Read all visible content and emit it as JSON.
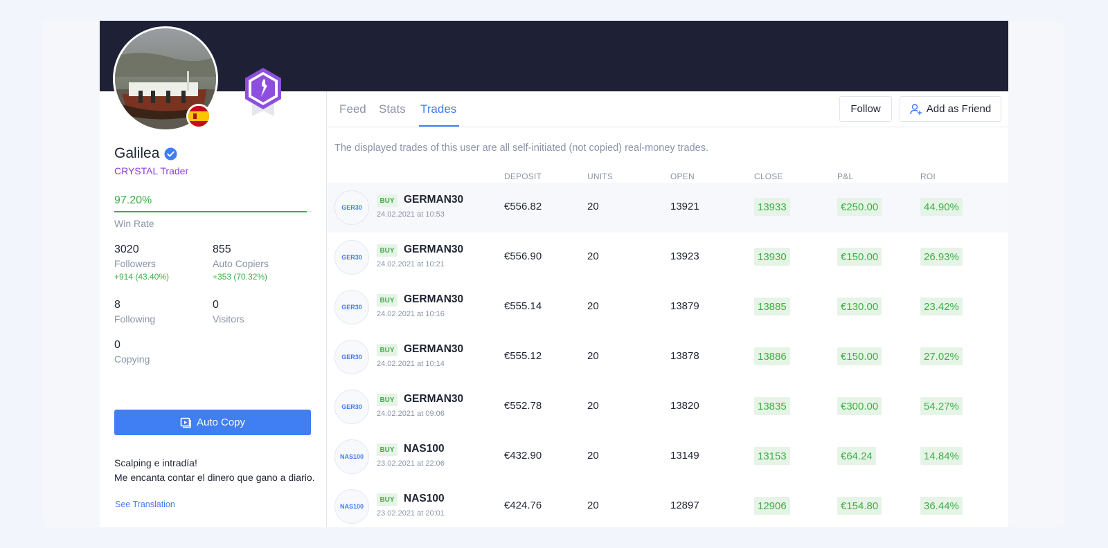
{
  "profile": {
    "name": "Galilea",
    "tier": "CRYSTAL Trader",
    "win_rate": "97.20%",
    "win_rate_fraction": 0.972,
    "win_rate_label": "Win Rate",
    "stats": [
      {
        "value": "3020",
        "label": "Followers",
        "delta": "+914 (43.40%)"
      },
      {
        "value": "855",
        "label": "Auto Copiers",
        "delta": "+353 (70.32%)"
      },
      {
        "value": "8",
        "label": "Following"
      },
      {
        "value": "0",
        "label": "Visitors"
      },
      {
        "value": "0",
        "label": "Copying"
      }
    ],
    "auto_copy_label": "Auto Copy",
    "bio_line1": "Scalping e intradía!",
    "bio_line2": "Me encanta contar el dinero que gano a diario.",
    "see_translation": "See Translation"
  },
  "tabs": [
    "Feed",
    "Stats",
    "Trades"
  ],
  "active_tab": "Trades",
  "actions": {
    "follow": "Follow",
    "add_friend": "Add as Friend"
  },
  "note": "The displayed trades of this user are all self-initiated (not copied) real-money trades.",
  "columns": [
    "DEPOSIT",
    "UNITS",
    "OPEN",
    "CLOSE",
    "P&L",
    "ROI"
  ],
  "trades": [
    {
      "icon": "GER30",
      "side": "BUY",
      "symbol": "GERMAN30",
      "date": "24.02.2021 at 10:53",
      "deposit": "€556.82",
      "units": "20",
      "open": "13921",
      "close": "13933",
      "pnl": "€250.00",
      "roi": "44.90%"
    },
    {
      "icon": "GER30",
      "side": "BUY",
      "symbol": "GERMAN30",
      "date": "24.02.2021 at 10:21",
      "deposit": "€556.90",
      "units": "20",
      "open": "13923",
      "close": "13930",
      "pnl": "€150.00",
      "roi": "26.93%"
    },
    {
      "icon": "GER30",
      "side": "BUY",
      "symbol": "GERMAN30",
      "date": "24.02.2021 at 10:16",
      "deposit": "€555.14",
      "units": "20",
      "open": "13879",
      "close": "13885",
      "pnl": "€130.00",
      "roi": "23.42%"
    },
    {
      "icon": "GER30",
      "side": "BUY",
      "symbol": "GERMAN30",
      "date": "24.02.2021 at 10:14",
      "deposit": "€555.12",
      "units": "20",
      "open": "13878",
      "close": "13886",
      "pnl": "€150.00",
      "roi": "27.02%"
    },
    {
      "icon": "GER30",
      "side": "BUY",
      "symbol": "GERMAN30",
      "date": "24.02.2021 at 09:06",
      "deposit": "€552.78",
      "units": "20",
      "open": "13820",
      "close": "13835",
      "pnl": "€300.00",
      "roi": "54.27%"
    },
    {
      "icon": "NAS100",
      "side": "BUY",
      "symbol": "NAS100",
      "date": "23.02.2021 at 22:06",
      "deposit": "€432.90",
      "units": "20",
      "open": "13149",
      "close": "13153",
      "pnl": "€64.24",
      "roi": "14.84%"
    },
    {
      "icon": "NAS100",
      "side": "BUY",
      "symbol": "NAS100",
      "date": "23.02.2021 at 20:01",
      "deposit": "€424.76",
      "units": "20",
      "open": "12897",
      "close": "12906",
      "pnl": "€154.80",
      "roi": "36.44%"
    }
  ],
  "colors": {
    "accent": "#3f7ef3",
    "positive": "#3fae45",
    "banner": "#1e2135",
    "tier": "#8a3bd8"
  }
}
